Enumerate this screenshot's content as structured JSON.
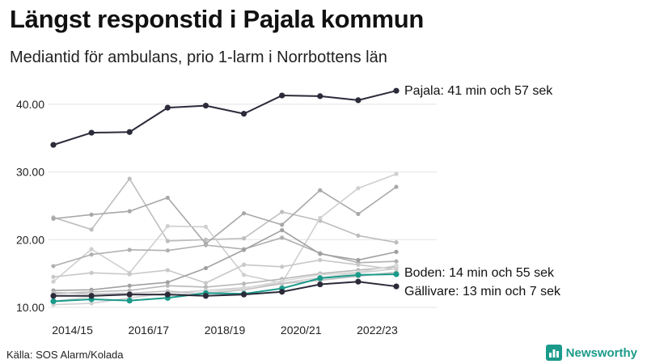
{
  "header": {
    "title": "Längst responstid i Pajala kommun",
    "subtitle": "Mediantid för ambulans, prio 1-larm i Norrbottens län"
  },
  "footer": {
    "source": "Källa: SOS Alarm/Kolada",
    "brand": "Newsworthy",
    "brand_icon": "bar-chart-icon",
    "brand_color": "#1a9a8a"
  },
  "chart_data": {
    "type": "line",
    "title": "Längst responstid i Pajala kommun",
    "subtitle": "Mediantid för ambulans, prio 1-larm i Norrbottens län",
    "x": [
      2014,
      2015,
      2016,
      2017,
      2018,
      2019,
      2020,
      2021,
      2022,
      2023
    ],
    "x_tick_labels": [
      "2014/15",
      "2016/17",
      "2018/19",
      "2020/21",
      "2022/23"
    ],
    "y_tick_labels": [
      "10.00",
      "20.00",
      "30.00",
      "40.00"
    ],
    "ylim": [
      10,
      42.5
    ],
    "grid": true,
    "highlighted_series": [
      {
        "name": "Pajala",
        "label": "Pajala: 41 min och 57 sek",
        "color": "#2b2b3a",
        "values": [
          34.0,
          35.8,
          35.9,
          39.5,
          39.8,
          38.6,
          41.3,
          41.2,
          40.6,
          42.0
        ]
      },
      {
        "name": "Boden",
        "label": "Boden: 14 min och 55 sek",
        "color": "#1a9a8a",
        "values": [
          10.9,
          11.2,
          11.0,
          11.4,
          12.1,
          12.0,
          12.8,
          14.3,
          14.8,
          14.9
        ]
      },
      {
        "name": "Gällivare",
        "label": "Gällivare: 13 min och 7 sek",
        "color": "#2b2b3a",
        "values": [
          11.7,
          11.7,
          11.9,
          11.9,
          11.7,
          11.9,
          12.3,
          13.4,
          13.8,
          13.1
        ]
      }
    ],
    "other_series": [
      {
        "color": "#bdbdbd",
        "values": [
          23.3,
          21.5,
          29.0,
          19.8,
          20.0,
          20.2,
          24.1,
          22.8,
          20.6,
          19.6
        ]
      },
      {
        "color": "#a8a8a8",
        "values": [
          23.1,
          23.7,
          24.2,
          26.2,
          19.4,
          23.9,
          22.2,
          27.3,
          23.8,
          27.8
        ]
      },
      {
        "color": "#cfcfcf",
        "values": [
          13.8,
          18.6,
          15.1,
          22.0,
          21.9,
          14.8,
          13.6,
          23.2,
          27.6,
          29.7
        ]
      },
      {
        "color": "#b0b0b0",
        "values": [
          16.1,
          17.8,
          18.5,
          18.4,
          19.2,
          18.6,
          20.3,
          18.0,
          16.6,
          16.8
        ]
      },
      {
        "color": "#c8c8c8",
        "values": [
          14.5,
          15.1,
          14.9,
          15.5,
          13.6,
          16.3,
          16.0,
          17.0,
          16.3,
          15.6
        ]
      },
      {
        "color": "#a0a0a0",
        "values": [
          12.5,
          12.6,
          13.2,
          13.7,
          15.8,
          18.5,
          21.4,
          17.9,
          17.0,
          18.2
        ]
      },
      {
        "color": "#b8b8b8",
        "values": [
          12.0,
          12.3,
          12.5,
          13.2,
          13.0,
          13.5,
          14.2,
          15.0,
          15.5,
          16.0
        ]
      },
      {
        "color": "#d0d0d0",
        "values": [
          10.4,
          10.6,
          11.4,
          12.1,
          12.5,
          12.9,
          13.6,
          14.4,
          15.1,
          15.7
        ]
      },
      {
        "color": "#c0c0c0",
        "values": [
          12.2,
          12.0,
          12.1,
          12.4,
          12.0,
          12.6,
          13.5,
          14.0,
          14.6,
          15.2
        ]
      },
      {
        "color": "#d8d8d8",
        "values": [
          10.9,
          11.6,
          11.9,
          11.8,
          12.2,
          12.8,
          13.9,
          14.8,
          15.2,
          16.2
        ]
      }
    ]
  }
}
